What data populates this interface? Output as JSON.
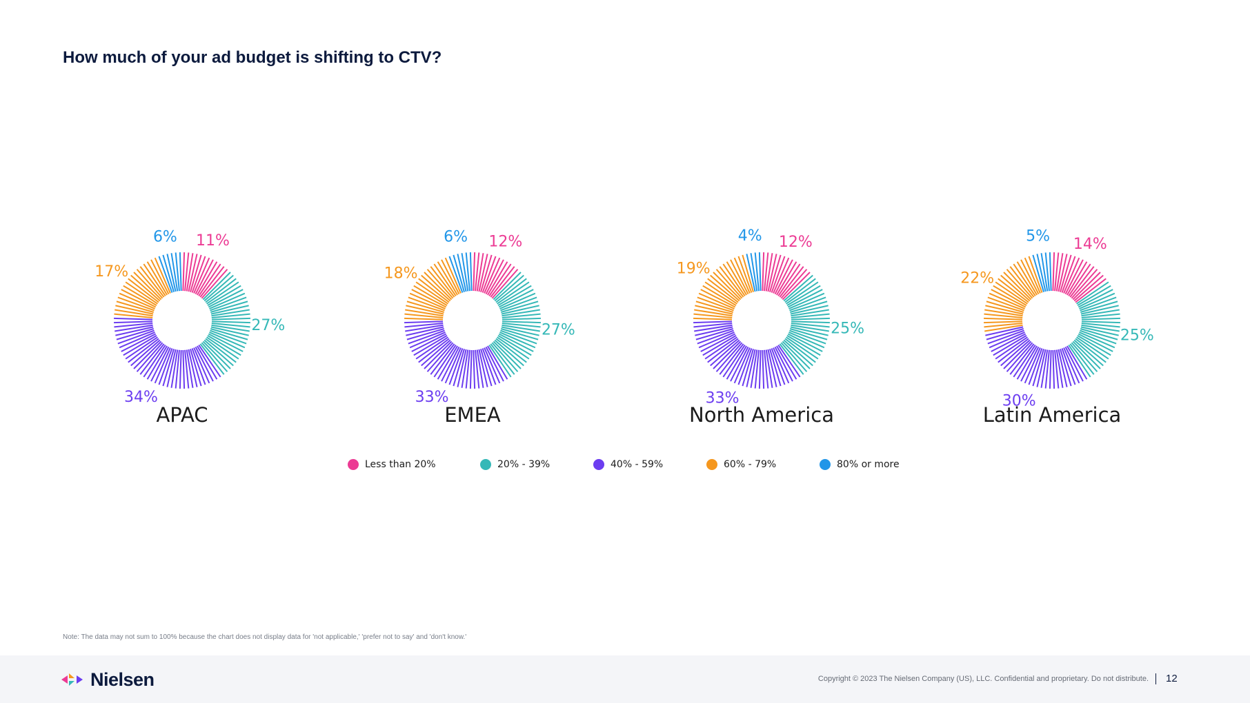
{
  "title": "How much of your ad budget is shifting to CTV?",
  "colors": {
    "less_than_20": "#ec3b94",
    "20_39": "#35b8b7",
    "40_59": "#6c3df0",
    "60_79": "#f5971e",
    "80_plus": "#2196e8"
  },
  "chart_data": {
    "type": "pie",
    "subtype": "donut",
    "categories": [
      "Less than 20%",
      "20% - 39%",
      "40% - 59%",
      "60% - 79%",
      "80% or more"
    ],
    "series": [
      {
        "name": "APAC",
        "values": [
          11,
          27,
          34,
          17,
          6
        ],
        "labels": [
          "11%",
          "27%",
          "34%",
          "17%",
          "6%"
        ]
      },
      {
        "name": "EMEA",
        "values": [
          12,
          27,
          33,
          18,
          6
        ],
        "labels": [
          "12%",
          "27%",
          "33%",
          "18%",
          "6%"
        ]
      },
      {
        "name": "North America",
        "values": [
          12,
          25,
          33,
          19,
          4
        ],
        "labels": [
          "12%",
          "25%",
          "33%",
          "19%",
          "4%"
        ]
      },
      {
        "name": "Latin America",
        "values": [
          14,
          25,
          30,
          22,
          5
        ],
        "labels": [
          "14%",
          "25%",
          "30%",
          "22%",
          "5%"
        ]
      }
    ],
    "legend_position": "bottom-center"
  },
  "legend": [
    {
      "label": "Less than 20%",
      "color": "#ec3b94"
    },
    {
      "label": "20% - 39%",
      "color": "#35b8b7"
    },
    {
      "label": "40% - 59%",
      "color": "#6c3df0"
    },
    {
      "label": "60% - 79%",
      "color": "#f5971e"
    },
    {
      "label": "80% or more",
      "color": "#2196e8"
    }
  ],
  "note": "Note: The data may not sum to 100% because the chart does not display data for 'not applicable,' 'prefer not to say' and 'don't know.'",
  "footer": {
    "logo_text": "Nielsen",
    "copyright": "Copyright © 2023 The Nielsen Company (US), LLC. Confidential and proprietary. Do not distribute.",
    "page_number": "12"
  }
}
